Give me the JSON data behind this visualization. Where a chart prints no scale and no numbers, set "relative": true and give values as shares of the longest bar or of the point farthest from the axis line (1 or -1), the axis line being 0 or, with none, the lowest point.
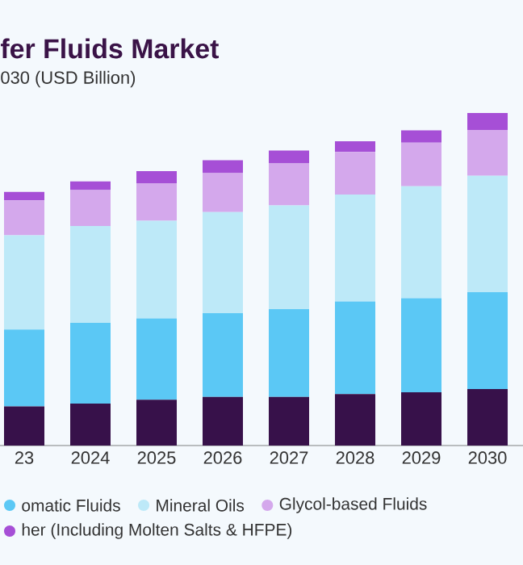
{
  "chart_data": {
    "type": "bar",
    "title": "fer Fluids Market",
    "subtitle": "030 (USD Billion)",
    "categories": [
      "23",
      "2024",
      "2025",
      "2026",
      "2027",
      "2028",
      "2029",
      "2030"
    ],
    "stacked": true,
    "relative": true,
    "legend": "bottom",
    "series": [
      {
        "color": "#37114a",
        "values": [
          0.118,
          0.126,
          0.138,
          0.146,
          0.146,
          0.155,
          0.16,
          0.17
        ]
      },
      {
        "name": "omatic Fluids",
        "color": "#5bc8f5",
        "values": [
          0.231,
          0.243,
          0.244,
          0.252,
          0.264,
          0.278,
          0.283,
          0.291
        ]
      },
      {
        "name": "Mineral Oils",
        "color": "#bde9f8",
        "values": [
          0.283,
          0.291,
          0.294,
          0.304,
          0.312,
          0.322,
          0.337,
          0.35
        ]
      },
      {
        "name": "Glycol-based Fluids",
        "color": "#d4a8ec",
        "values": [
          0.105,
          0.108,
          0.113,
          0.117,
          0.126,
          0.128,
          0.131,
          0.138
        ]
      },
      {
        "name": "her (Including Molten Salts & HFPE)",
        "color": "#a64fd6",
        "values": [
          0.026,
          0.026,
          0.036,
          0.039,
          0.039,
          0.032,
          0.037,
          0.051
        ]
      }
    ]
  }
}
